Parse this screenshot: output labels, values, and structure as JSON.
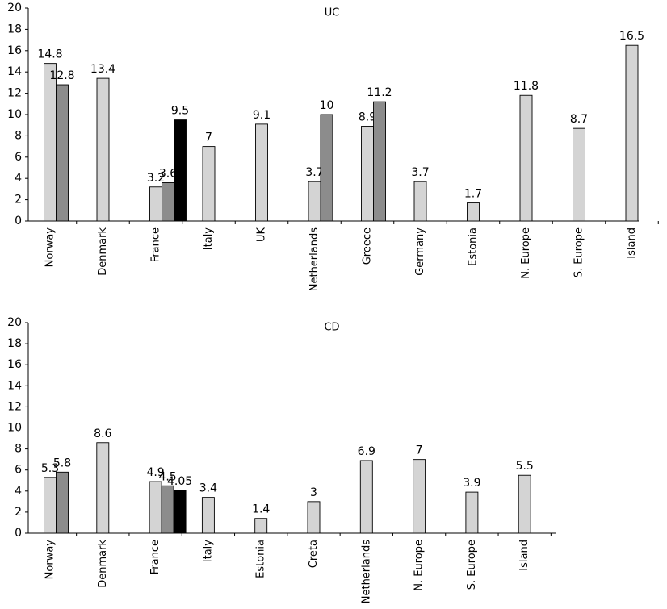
{
  "colors": {
    "bar_light": "#d4d4d4",
    "bar_mid": "#8c8c8c",
    "bar_dark": "#000000",
    "axis": "#000000"
  },
  "chart_data": [
    {
      "type": "bar",
      "title": "UC",
      "xlabel": "",
      "ylabel": "",
      "ylim": [
        0,
        20
      ],
      "yticks": [
        0,
        2,
        4,
        6,
        8,
        10,
        12,
        14,
        16,
        18,
        20
      ],
      "grid": false,
      "categories": [
        "Norway",
        "Denmark",
        "France",
        "Italy",
        "UK",
        "Netherlands",
        "Greece",
        "Germany",
        "Estonia",
        "N. Europe",
        "S. Europe",
        "Island"
      ],
      "groups": [
        [
          {
            "value": 14.8,
            "label": "14.8",
            "shade": "light"
          },
          {
            "value": 12.8,
            "label": "12.8",
            "shade": "mid"
          }
        ],
        [
          {
            "value": 13.4,
            "label": "13.4",
            "shade": "light"
          }
        ],
        [
          {
            "value": 3.2,
            "label": "3.2",
            "shade": "light"
          },
          {
            "value": 3.6,
            "label": "3.6",
            "shade": "mid"
          },
          {
            "value": 9.5,
            "label": "9.5",
            "shade": "dark"
          }
        ],
        [
          {
            "value": 7,
            "label": "7",
            "shade": "light"
          }
        ],
        [
          {
            "value": 9.1,
            "label": "9.1",
            "shade": "light"
          }
        ],
        [
          {
            "value": 3.7,
            "label": "3.7",
            "shade": "light"
          },
          {
            "value": 10,
            "label": "10",
            "shade": "mid"
          }
        ],
        [
          {
            "value": 8.9,
            "label": "8.9",
            "shade": "light"
          },
          {
            "value": 11.2,
            "label": "11.2",
            "shade": "mid"
          }
        ],
        [
          {
            "value": 3.7,
            "label": "3.7",
            "shade": "light"
          }
        ],
        [
          {
            "value": 1.7,
            "label": "1.7",
            "shade": "light"
          }
        ],
        [
          {
            "value": 11.8,
            "label": "11.8",
            "shade": "light"
          }
        ],
        [
          {
            "value": 8.7,
            "label": "8.7",
            "shade": "light"
          }
        ],
        [
          {
            "value": 16.5,
            "label": "16.5",
            "shade": "light"
          }
        ]
      ]
    },
    {
      "type": "bar",
      "title": "CD",
      "xlabel": "",
      "ylabel": "",
      "ylim": [
        0,
        20
      ],
      "yticks": [
        0,
        2,
        4,
        6,
        8,
        10,
        12,
        14,
        16,
        18,
        20
      ],
      "grid": false,
      "categories": [
        "Norway",
        "Denmark",
        "France",
        "Italy",
        "Estonia",
        "Creta",
        "Netherlands",
        "N. Europe",
        "S. Europe",
        "Island"
      ],
      "groups": [
        [
          {
            "value": 5.3,
            "label": "5.3",
            "shade": "light"
          },
          {
            "value": 5.8,
            "label": "5.8",
            "shade": "mid"
          }
        ],
        [
          {
            "value": 8.6,
            "label": "8.6",
            "shade": "light"
          }
        ],
        [
          {
            "value": 4.9,
            "label": "4.9",
            "shade": "light"
          },
          {
            "value": 4.5,
            "label": "4.5",
            "shade": "mid"
          },
          {
            "value": 4.05,
            "label": "4.05",
            "shade": "dark"
          }
        ],
        [
          {
            "value": 3.4,
            "label": "3.4",
            "shade": "light"
          }
        ],
        [
          {
            "value": 1.4,
            "label": "1.4",
            "shade": "light"
          }
        ],
        [
          {
            "value": 3,
            "label": "3",
            "shade": "light"
          }
        ],
        [
          {
            "value": 6.9,
            "label": "6.9",
            "shade": "light"
          }
        ],
        [
          {
            "value": 7,
            "label": "7",
            "shade": "light"
          }
        ],
        [
          {
            "value": 3.9,
            "label": "3.9",
            "shade": "light"
          }
        ],
        [
          {
            "value": 5.5,
            "label": "5.5",
            "shade": "light"
          }
        ]
      ]
    }
  ]
}
